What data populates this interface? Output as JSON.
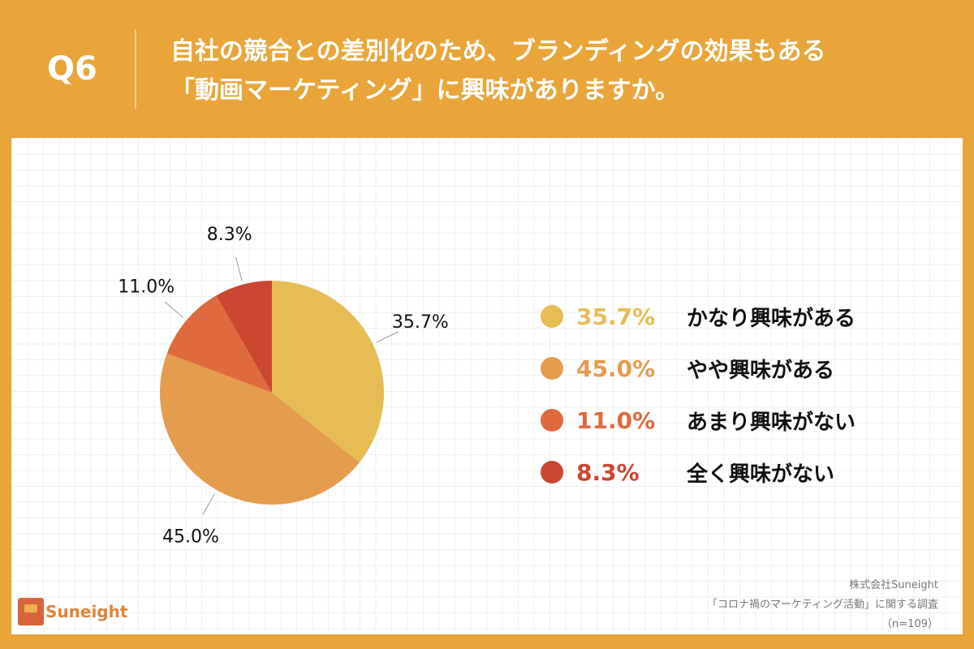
{
  "header": {
    "question": "Q6",
    "title_line1": "自社の競合との差別化のため、ブランディングの効果もある",
    "title_line2": "「動画マーケティング」に興味がありますか。"
  },
  "chart_data": {
    "type": "pie",
    "categories": [
      "かなり興味がある",
      "やや興味がある",
      "あまり興味がない",
      "全く興味がない"
    ],
    "values": [
      35.7,
      45.0,
      11.0,
      8.3
    ],
    "data_labels": [
      "35.7%",
      "45.0%",
      "11.0%",
      "8.3%"
    ],
    "colors": [
      "#E6BD55",
      "#E49C4D",
      "#DE6A3E",
      "#CB4631"
    ],
    "start": "top",
    "direction": "clockwise",
    "legend": "right"
  },
  "footer": {
    "company": "株式会社Suneight",
    "survey": "「コロナ禍のマーケティング活動」に関する調査",
    "n": "（n=109）",
    "logo_text": "Suneight"
  },
  "colors": {
    "background": "#E9A53A"
  }
}
